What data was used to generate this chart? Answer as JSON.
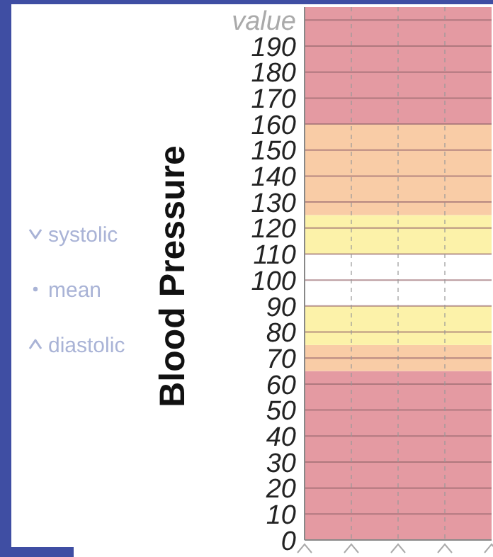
{
  "chart_data": {
    "type": "line",
    "ylabel": "Blood Pressure",
    "categories": [
      null,
      null,
      null,
      null
    ],
    "series": [
      {
        "name": "systolic",
        "color": "#a9b3d6",
        "marker": "triangle-down",
        "values": [
          null,
          null,
          null,
          null
        ]
      },
      {
        "name": "mean",
        "color": "#a9b3d6",
        "marker": "circle",
        "values": [
          null,
          null,
          null,
          null
        ]
      },
      {
        "name": "diastolic",
        "color": "#a9b3d6",
        "marker": "triangle",
        "values": [
          null,
          null,
          null,
          null
        ]
      }
    ],
    "ylim": [
      0,
      205
    ],
    "yticks": [
      0,
      10,
      20,
      30,
      40,
      50,
      60,
      70,
      80,
      90,
      100,
      110,
      120,
      130,
      140,
      150,
      160,
      170,
      180,
      190,
      {
        "value": 200,
        "label": "value"
      }
    ],
    "bands": [
      {
        "axis": "y",
        "from": 0,
        "to": 65,
        "color": "#e49aa2"
      },
      {
        "axis": "y",
        "from": 65,
        "to": 75,
        "color": "#f9cca6"
      },
      {
        "axis": "y",
        "from": 75,
        "to": 90,
        "color": "#fcf2a9"
      },
      {
        "axis": "y",
        "from": 110,
        "to": 125,
        "color": "#fcf2a9"
      },
      {
        "axis": "y",
        "from": 125,
        "to": 160,
        "color": "#f9cca6"
      },
      {
        "axis": "y",
        "from": 160,
        "to": 205,
        "color": "#e49aa2"
      }
    ],
    "grid": true,
    "legend": "left"
  }
}
